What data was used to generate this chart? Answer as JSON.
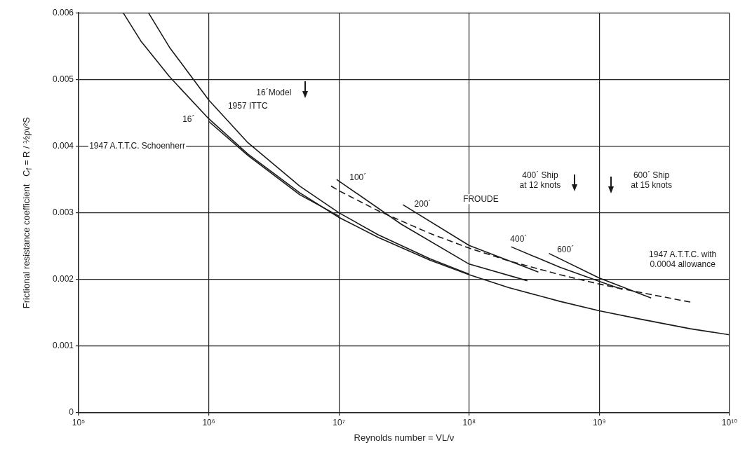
{
  "chart_data": {
    "type": "line",
    "xlabel": "Reynolds number = VL/ν",
    "ylabel": "Frictional resistance coefficient   C$_{f}$ = R / ½ρv²S",
    "log": "x",
    "xlim": [
      100000,
      10000000000
    ],
    "xticks": [
      {
        "value": 100000,
        "label": "10⁵"
      },
      {
        "value": 1000000,
        "label": "10⁶"
      },
      {
        "value": 10000000,
        "label": "10⁷"
      },
      {
        "value": 100000000,
        "label": "10⁸"
      },
      {
        "value": 1000000000,
        "label": "10⁹"
      },
      {
        "value": 10000000000,
        "label": "10¹⁰"
      }
    ],
    "ylim": [
      0,
      0.006
    ],
    "yticks": [
      0,
      0.001,
      0.002,
      0.003,
      0.004,
      0.005,
      0.006
    ],
    "grid": true,
    "legend": false,
    "marker": "none",
    "series": [
      {
        "color": "#1a1a1a",
        "line_style": "solid",
        "x": [
          220000,
          300000,
          500000,
          1000000,
          2000000,
          5000000,
          10000000,
          20000000,
          50000000,
          100000000,
          200000000,
          500000000,
          1000000000,
          2000000000,
          5000000000,
          10000000000
        ],
        "values": [
          0.006,
          0.00558,
          0.00504,
          0.00441,
          0.00388,
          0.0033,
          0.00293,
          0.00263,
          0.00229,
          0.00207,
          0.00188,
          0.00167,
          0.00153,
          0.00141,
          0.00126,
          0.00117
        ]
      },
      {
        "color": "#1a1a1a",
        "line_style": "solid",
        "x": [
          344000,
          500000,
          1000000,
          2000000,
          5000000,
          10000000,
          20000000,
          50000000,
          100000000
        ],
        "values": [
          0.006,
          0.00548,
          0.00469,
          0.00405,
          0.0034,
          0.003,
          0.00267,
          0.00231,
          0.00208
        ]
      },
      {
        "color": "#1a1a1a",
        "line_style": "dashed",
        "x": [
          8700000,
          10000000,
          20000000,
          50000000,
          100000000,
          200000000,
          500000000,
          1000000000,
          2000000000,
          5000000000
        ],
        "values": [
          0.0034,
          0.00333,
          0.00303,
          0.00269,
          0.00247,
          0.00228,
          0.00207,
          0.00193,
          0.00181,
          0.00166
        ]
      },
      {
        "color": "#1a1a1a",
        "line_style": "solid",
        "x": [
          1000000,
          2000000,
          5000000,
          10000000
        ],
        "values": [
          0.00437,
          0.00386,
          0.00327,
          0.00295
        ]
      },
      {
        "color": "#1a1a1a",
        "line_style": "solid",
        "x": [
          9600000,
          30000000,
          100000000,
          280000000
        ],
        "values": [
          0.0035,
          0.00283,
          0.00223,
          0.00198
        ]
      },
      {
        "color": "#1a1a1a",
        "line_style": "solid",
        "x": [
          31000000,
          100000000,
          340000000
        ],
        "values": [
          0.00312,
          0.00251,
          0.00211
        ]
      },
      {
        "color": "#1a1a1a",
        "line_style": "solid",
        "x": [
          210000000,
          500000000,
          1000000000,
          1500000000
        ],
        "values": [
          0.00249,
          0.00218,
          0.00197,
          0.00185
        ]
      },
      {
        "color": "#1a1a1a",
        "line_style": "solid",
        "x": [
          410000000,
          1000000000,
          2500000000
        ],
        "values": [
          0.00239,
          0.00202,
          0.00172
        ]
      }
    ],
    "annotations": [
      "1947 A.T.T.C. Schoenherr",
      "1957 ITTC",
      {
        "text": "16´",
        "x": 700000,
        "y": 0.0044
      },
      "16´Model",
      {
        "text": "100´",
        "x": 14000000,
        "y": 0.00352
      },
      {
        "text": "200´",
        "x": 44000000,
        "y": 0.00312
      },
      "FROUDE",
      {
        "text": "400´",
        "x": 240000000,
        "y": 0.0026
      },
      {
        "text": "600´",
        "x": 550000000,
        "y": 0.00244
      },
      "400´ Ship\nat 12 knots",
      "600´ Ship\nat 15 knots",
      "1947 A.T.T.C. with\n0.0004 allowance"
    ]
  }
}
